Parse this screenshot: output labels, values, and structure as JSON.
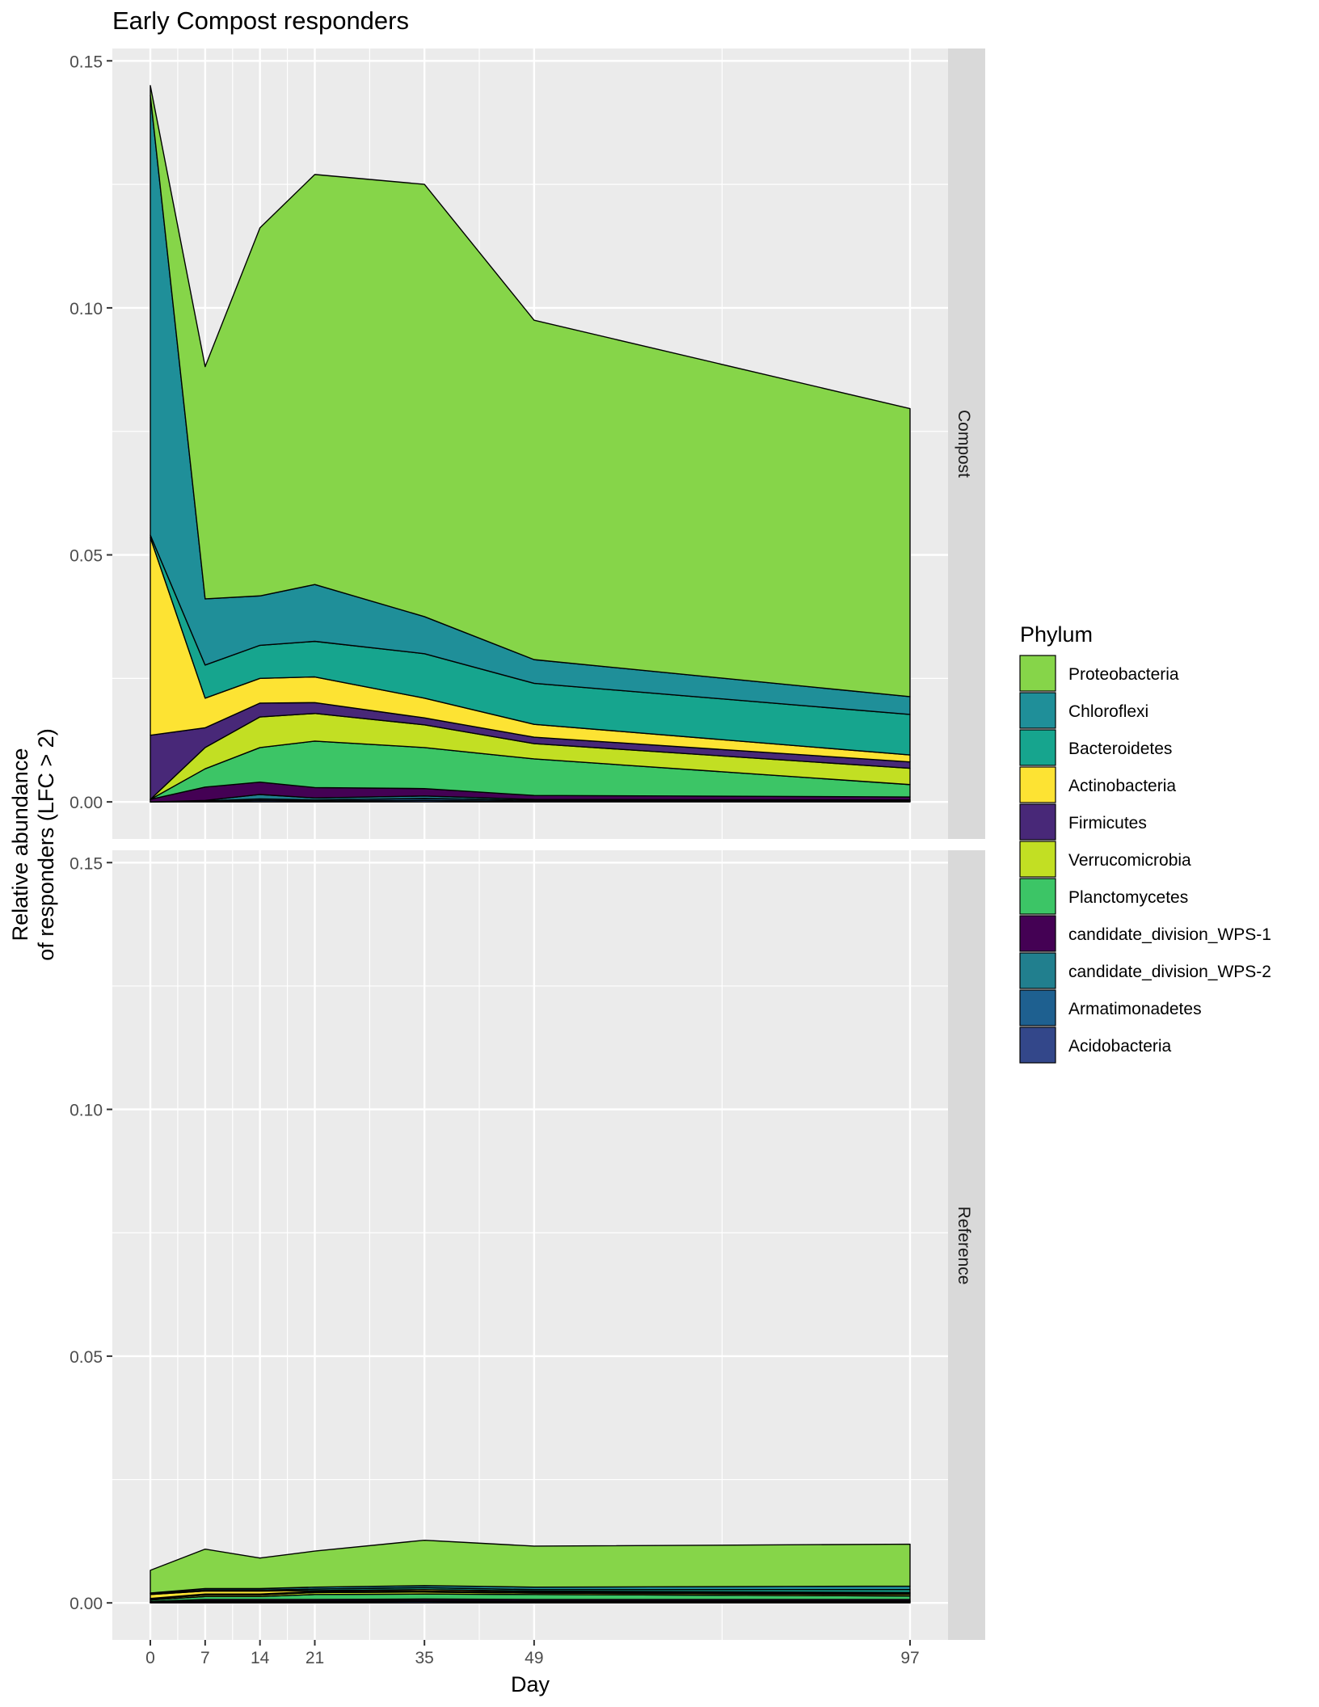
{
  "chart_data": {
    "type": "area",
    "title": "Early Compost responders",
    "xlabel": "Day",
    "ylabel_line1": "Relative abundance",
    "ylabel_line2": "of responders (LFC > 2)",
    "x": [
      0,
      7,
      14,
      21,
      35,
      49,
      97
    ],
    "x_ticks": [
      0,
      7,
      14,
      21,
      35,
      49,
      97
    ],
    "xlim": [
      -4.85,
      101.85
    ],
    "ylim": [
      -0.0075,
      0.1525
    ],
    "y_ticks": [
      0,
      0.05,
      0.1,
      0.15
    ],
    "y_tick_labels": [
      "0.00",
      "0.05",
      "0.10",
      "0.15"
    ],
    "grid": true,
    "legend_position": "right",
    "legend_title": "Phylum",
    "series_order": [
      "Proteobacteria",
      "Chloroflexi",
      "Bacteroidetes",
      "Actinobacteria",
      "Firmicutes",
      "Verrucomicrobia",
      "Planctomycetes",
      "candidate_division_WPS-1",
      "candidate_division_WPS-2",
      "Armatimonadetes",
      "Acidobacteria"
    ],
    "colors": {
      "Proteobacteria": "#86D549",
      "Chloroflexi": "#1F8F99",
      "Bacteroidetes": "#16A58E",
      "Actinobacteria": "#FDE333",
      "Firmicutes": "#482878",
      "Verrucomicrobia": "#C2DF23",
      "Planctomycetes": "#3CC566",
      "candidate_division_WPS-1": "#440154",
      "candidate_division_WPS-2": "#217F8E",
      "Armatimonadetes": "#1E6090",
      "Acidobacteria": "#33478A"
    },
    "panels": [
      {
        "strip": "Compost",
        "series": [
          {
            "name": "Acidobacteria",
            "values": [
              0,
              0.0001,
              0.0003,
              0.0002,
              0.0003,
              0.0001,
              0.0001
            ]
          },
          {
            "name": "Armatimonadetes",
            "values": [
              0,
              0.0001,
              0.0003,
              0.0002,
              0.0004,
              0.0002,
              0.0002
            ]
          },
          {
            "name": "candidate_division_WPS-2",
            "values": [
              0,
              0.0001,
              0.0009,
              0.0004,
              0.0005,
              0.0002,
              0.0001
            ]
          },
          {
            "name": "candidate_division_WPS-1",
            "values": [
              0.0005,
              0.0027,
              0.0025,
              0.0021,
              0.0015,
              0.0008,
              0.0006
            ]
          },
          {
            "name": "Planctomycetes",
            "values": [
              0,
              0.0037,
              0.007,
              0.0094,
              0.0083,
              0.0074,
              0.0025
            ]
          },
          {
            "name": "Verrucomicrobia",
            "values": [
              0,
              0.0043,
              0.0062,
              0.0056,
              0.0046,
              0.0031,
              0.0033
            ]
          },
          {
            "name": "Firmicutes",
            "values": [
              0.013,
              0.004,
              0.0028,
              0.0022,
              0.0014,
              0.0013,
              0.0013
            ]
          },
          {
            "name": "Actinobacteria",
            "values": [
              0.04,
              0.006,
              0.005,
              0.0052,
              0.004,
              0.0026,
              0.0014
            ]
          },
          {
            "name": "Bacteroidetes",
            "values": [
              0.0005,
              0.0067,
              0.0067,
              0.0072,
              0.009,
              0.0083,
              0.0082
            ]
          },
          {
            "name": "Chloroflexi",
            "values": [
              0.089,
              0.0134,
              0.01,
              0.0115,
              0.0075,
              0.0048,
              0.0036
            ]
          },
          {
            "name": "Proteobacteria",
            "values": [
              0.002,
              0.047,
              0.0745,
              0.083,
              0.0875,
              0.0687,
              0.0583
            ]
          }
        ]
      },
      {
        "strip": "Reference",
        "series": [
          {
            "name": "Acidobacteria",
            "values": [
              0.0001,
              0.0002,
              0.0002,
              0.0002,
              0.0003,
              0.0002,
              0.0002
            ]
          },
          {
            "name": "Armatimonadetes",
            "values": [
              0,
              0.0001,
              0.0001,
              0.0001,
              0.0001,
              0.0001,
              0.0001
            ]
          },
          {
            "name": "candidate_division_WPS-2",
            "values": [
              0,
              0.0001,
              0.0001,
              0.0001,
              0.0001,
              0.0001,
              0.0001
            ]
          },
          {
            "name": "candidate_division_WPS-1",
            "values": [
              0.0002,
              0.0003,
              0.0003,
              0.0003,
              0.0003,
              0.0003,
              0.0003
            ]
          },
          {
            "name": "Planctomycetes",
            "values": [
              0.0003,
              0.0006,
              0.0006,
              0.001,
              0.001,
              0.001,
              0.0007
            ]
          },
          {
            "name": "Verrucomicrobia",
            "values": [
              0.0002,
              0.0003,
              0.0003,
              0.0004,
              0.0004,
              0.0003,
              0.0003
            ]
          },
          {
            "name": "Firmicutes",
            "values": [
              0.0001,
              0.0002,
              0.0002,
              0.0002,
              0.0002,
              0.0002,
              0.0002
            ]
          },
          {
            "name": "Actinobacteria",
            "values": [
              0.0008,
              0.0006,
              0.0006,
              0.0002,
              0.0003,
              0.0002,
              0.0002
            ]
          },
          {
            "name": "Bacteroidetes",
            "values": [
              0.0002,
              0.0002,
              0.0002,
              0.0003,
              0.0004,
              0.0003,
              0.0006
            ]
          },
          {
            "name": "Chloroflexi",
            "values": [
              0.0001,
              0.0003,
              0.0003,
              0.0004,
              0.0004,
              0.0005,
              0.0007
            ]
          },
          {
            "name": "Proteobacteria",
            "values": [
              0.0046,
              0.008,
              0.0062,
              0.0073,
              0.0092,
              0.0083,
              0.0085
            ]
          }
        ]
      }
    ]
  }
}
